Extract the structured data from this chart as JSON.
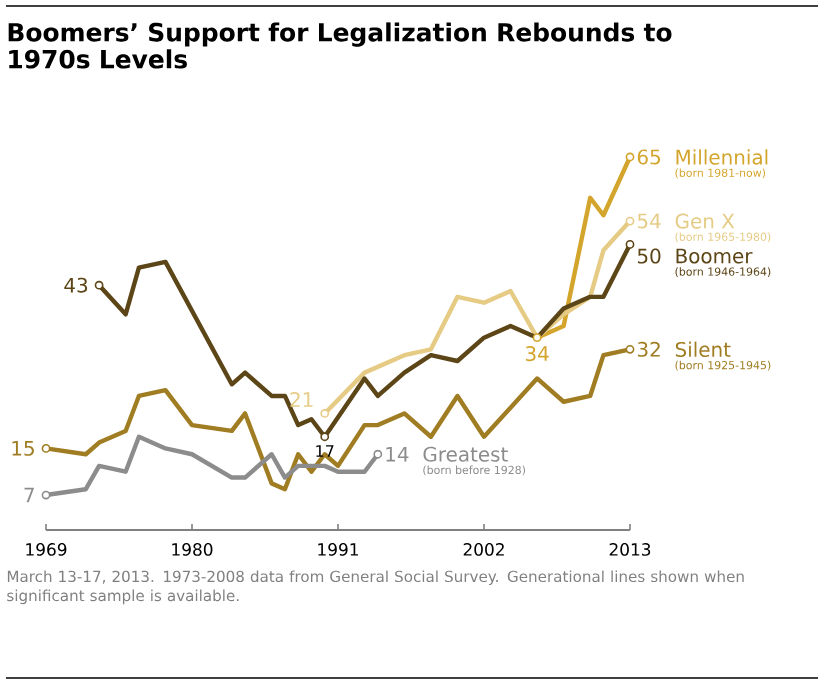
{
  "chart_data": {
    "type": "line",
    "title": "Boomers’ Support for Legalization  Rebounds to 1970s Levels",
    "xlim": [
      1969,
      2013
    ],
    "xticks": [
      1969,
      1980,
      1991,
      2002,
      2013
    ],
    "tick_labels": "x",
    "grid": false,
    "line_style": "solid",
    "series": [
      {
        "name": "Millennial",
        "color": "#d4a52c",
        "x": [
          2006,
          2008,
          2010,
          2011,
          2013
        ],
        "values": [
          34,
          36,
          58,
          55,
          65
        ],
        "value_labels": [
          "34",
          null,
          null,
          null,
          "65"
        ]
      },
      {
        "name": "Gen X",
        "color": "#e6cb85",
        "x": [
          1990,
          1993,
          1994,
          1996,
          1998,
          2000,
          2002,
          2004,
          2006,
          2008,
          2010,
          2011,
          2013
        ],
        "values": [
          21,
          28,
          29,
          31,
          32,
          41,
          40,
          42,
          34,
          38,
          41,
          49,
          54
        ],
        "value_labels": [
          "21",
          null,
          null,
          null,
          null,
          null,
          null,
          null,
          null,
          null,
          null,
          null,
          "54"
        ]
      },
      {
        "name": "Boomer",
        "color": "#5c4516",
        "x": [
          1973,
          1975,
          1976,
          1978,
          1983,
          1984,
          1986,
          1987,
          1988,
          1989,
          1990,
          1993,
          1994,
          1996,
          1998,
          2000,
          2002,
          2004,
          2006,
          2008,
          2010,
          2011,
          2013
        ],
        "values": [
          43,
          38,
          46,
          47,
          26,
          28,
          24,
          24,
          19,
          20,
          17,
          27,
          24,
          28,
          31,
          30,
          34,
          36,
          34,
          39,
          41,
          41,
          50
        ],
        "value_labels": [
          "43",
          null,
          null,
          null,
          null,
          null,
          null,
          null,
          null,
          null,
          "17",
          null,
          null,
          null,
          null,
          null,
          null,
          null,
          null,
          null,
          null,
          null,
          "50"
        ]
      },
      {
        "name": "Silent",
        "color": "#a07d22",
        "x": [
          1969,
          1972,
          1973,
          1975,
          1976,
          1978,
          1980,
          1983,
          1984,
          1986,
          1987,
          1988,
          1989,
          1990,
          1991,
          1993,
          1994,
          1996,
          1998,
          2000,
          2002,
          2004,
          2006,
          2008,
          2010,
          2011,
          2013
        ],
        "values": [
          15,
          14,
          16,
          18,
          24,
          25,
          19,
          18,
          21,
          9,
          8,
          14,
          11,
          14,
          12,
          19,
          19,
          21,
          17,
          24,
          17,
          22,
          27,
          23,
          24,
          31,
          32
        ],
        "value_labels": [
          "15",
          null,
          null,
          null,
          null,
          null,
          null,
          null,
          null,
          null,
          null,
          null,
          null,
          null,
          null,
          null,
          null,
          null,
          null,
          null,
          null,
          null,
          null,
          null,
          null,
          null,
          "32"
        ]
      },
      {
        "name": "Greatest",
        "color": "#8c8c8c",
        "x": [
          1969,
          1972,
          1973,
          1975,
          1976,
          1978,
          1980,
          1983,
          1984,
          1986,
          1987,
          1988,
          1990,
          1991,
          1993,
          1994
        ],
        "values": [
          7,
          8,
          12,
          11,
          17,
          15,
          14,
          10,
          10,
          14,
          10,
          12,
          12,
          11,
          11,
          14
        ],
        "value_labels": [
          "7",
          null,
          null,
          null,
          null,
          null,
          null,
          null,
          null,
          null,
          null,
          null,
          null,
          null,
          null,
          "14"
        ]
      }
    ],
    "annotations": [
      "(born 1981-now)",
      "(born 1965-1980)",
      "(born 1946-1964)",
      "(born 1925-1945)",
      "(born before 1928)",
      "March 13-17, 2013. 1973-2008 data from General Social Survey. Generational lines shown when significant sample is available."
    ]
  }
}
